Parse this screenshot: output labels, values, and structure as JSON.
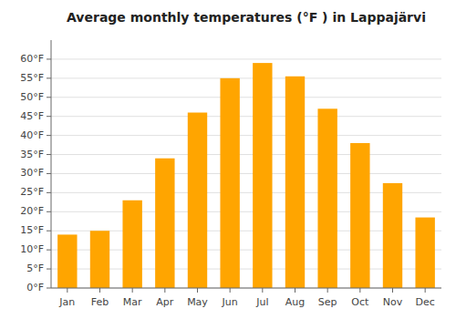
{
  "chart_data": {
    "type": "bar",
    "title": "Average monthly temperatures (°F ) in Lappajärvi",
    "categories": [
      "Jan",
      "Feb",
      "Mar",
      "Apr",
      "May",
      "Jun",
      "Jul",
      "Aug",
      "Sep",
      "Oct",
      "Nov",
      "Dec"
    ],
    "values": [
      14,
      15,
      23,
      34,
      46,
      55,
      59,
      55.5,
      47,
      38,
      27.5,
      18.5
    ],
    "color": "#FFA500",
    "ylim": [
      0,
      65
    ],
    "yticks": [
      {
        "value": 0,
        "label": "0°F"
      },
      {
        "value": 5,
        "label": "5°F"
      },
      {
        "value": 10,
        "label": "10°F"
      },
      {
        "value": 15,
        "label": "15°F"
      },
      {
        "value": 20,
        "label": "20°F"
      },
      {
        "value": 25,
        "label": "25°F"
      },
      {
        "value": 30,
        "label": "30°F"
      },
      {
        "value": 35,
        "label": "35°F"
      },
      {
        "value": 40,
        "label": "40°F"
      },
      {
        "value": 45,
        "label": "45°F"
      },
      {
        "value": 50,
        "label": "50°F"
      },
      {
        "value": 55,
        "label": "55°F"
      },
      {
        "value": 60,
        "label": "60°F"
      }
    ],
    "grid": true
  }
}
